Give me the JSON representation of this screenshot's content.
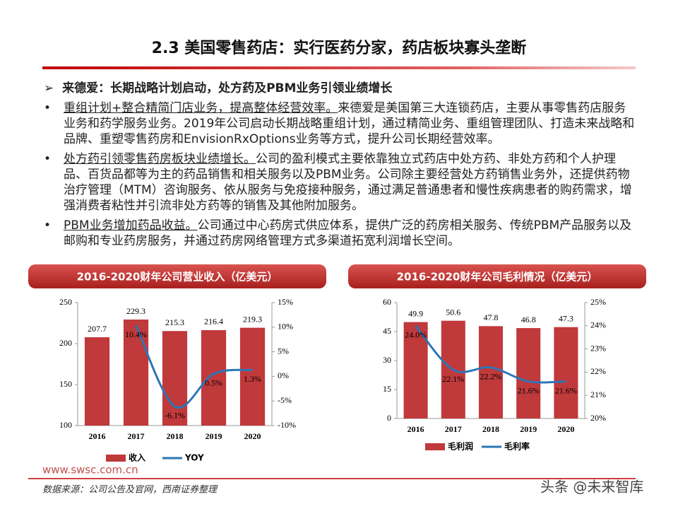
{
  "header": {
    "title": "2.3 美国零售药店：实行医药分家，药店板块寡头垄断"
  },
  "section": {
    "heading": "来德爱：长期战略计划启动，处方药及PBM业务引领业绩增长",
    "bullets": [
      {
        "lead": "重组计划+整合精简门店业务，提高整体经营效率。",
        "text": "来德爱是美国第三大连锁药店，主要从事零售药店服务业务和药学服务业务。2019年公司启动长期战略重组计划，通过精简业务、重组管理团队、打造未来战略和品牌、重塑零售药房和EnvisionRxOptions业务等方式，提升公司长期经营效率。"
      },
      {
        "lead": "处方药引领零售药房板块业绩增长。",
        "text": "公司的盈利模式主要依靠独立式药店中处方药、非处方药和个人护理品、百货品都等为主的药品销售和相关服务以及PBM业务。公司除主要经营处方药销售业务外，还提供药物治疗管理（MTM）咨询服务、依从服务与免疫接种服务，通过满足普通患者和慢性疾病患者的购药需求，增强消费者粘性并引流非处方药等的销售及其他附加服务。"
      },
      {
        "lead": "PBM业务增加药品收益。",
        "text": "公司通过中心药房式供应体系，提供广泛的药房相关服务、传统PBM产品服务以及邮购和专业药房服务，并通过药房网络管理方式多渠道拓宽利润增长空间。"
      }
    ]
  },
  "chart_data": [
    {
      "type": "bar-line",
      "title": "2016-2020财年公司营业收入（亿美元）",
      "categories": [
        "2016",
        "2017",
        "2018",
        "2019",
        "2020"
      ],
      "series": [
        {
          "name": "收入",
          "type": "bar",
          "color": "#c0393b",
          "values": [
            207.7,
            229.3,
            215.3,
            216.4,
            219.3
          ]
        },
        {
          "name": "YOY",
          "type": "line",
          "axis": "y2",
          "color": "#2e75b6",
          "values": [
            null,
            10.4,
            -6.1,
            0.5,
            1.3
          ],
          "value_labels": [
            null,
            "10.4%",
            "-6.1%",
            "0.5%",
            "1.3%"
          ]
        }
      ],
      "ylim": [
        100,
        250
      ],
      "yticks": [
        100,
        150,
        200,
        250
      ],
      "y2lim": [
        -10,
        15
      ],
      "y2ticks": [
        {
          "value": -10,
          "label": "-10%"
        },
        {
          "value": -5,
          "label": "-5%"
        },
        {
          "value": 0,
          "label": "0%"
        },
        {
          "value": 5,
          "label": "5%"
        },
        {
          "value": 10,
          "label": "10%"
        },
        {
          "value": 15,
          "label": "15%"
        }
      ]
    },
    {
      "type": "bar-line",
      "title": "2016-2020财年公司毛利情况（亿美元）",
      "categories": [
        "2016",
        "2017",
        "2018",
        "2019",
        "2020"
      ],
      "series": [
        {
          "name": "毛利润",
          "type": "bar",
          "color": "#c0393b",
          "values": [
            49.9,
            50.6,
            47.8,
            46.8,
            47.3
          ]
        },
        {
          "name": "毛利率",
          "type": "line",
          "axis": "y2",
          "color": "#2e75b6",
          "values": [
            24.0,
            22.1,
            22.2,
            21.6,
            21.6
          ],
          "value_labels": [
            "24.0%",
            "22.1%",
            "22.2%",
            "21.6%",
            "21.6%"
          ]
        }
      ],
      "ylim": [
        0,
        60
      ],
      "yticks": [
        0,
        15,
        30,
        45,
        60
      ],
      "y2lim": [
        20,
        25
      ],
      "y2ticks": [
        {
          "value": 20,
          "label": "20%"
        },
        {
          "value": 21,
          "label": "21%"
        },
        {
          "value": 22,
          "label": "22%"
        },
        {
          "value": 23,
          "label": "23%"
        },
        {
          "value": 24,
          "label": "24%"
        },
        {
          "value": 25,
          "label": "25%"
        }
      ]
    }
  ],
  "footer": {
    "website": "www.swsc.com.cn",
    "source": "数据来源：公司公告及官网，西南证券整理",
    "watermark": "头条 @未来智库"
  }
}
